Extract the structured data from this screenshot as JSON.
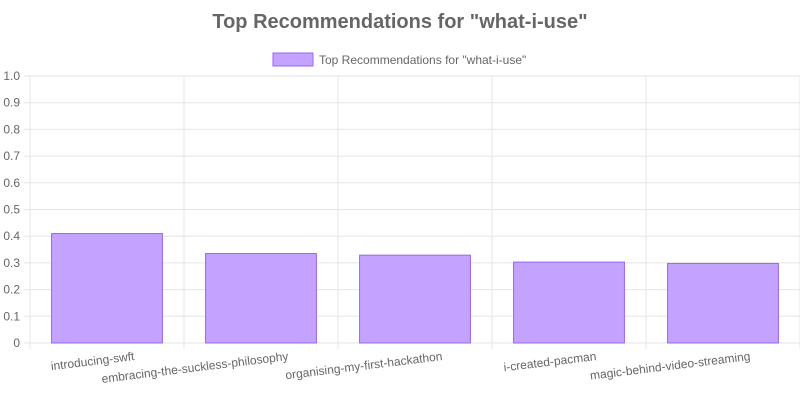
{
  "chart_data": {
    "type": "bar",
    "title": "Top Recommendations for \"what-i-use\"",
    "categories": [
      "introducing-swft",
      "embracing-the-suckless-philosophy",
      "organising-my-first-hackathon",
      "i-created-pacman",
      "magic-behind-video-streaming"
    ],
    "series": [
      {
        "name": "Top Recommendations for \"what-i-use\"",
        "values": [
          0.41,
          0.335,
          0.329,
          0.303,
          0.298
        ]
      }
    ],
    "ylim": [
      0,
      1.0
    ],
    "yticks": [
      "0",
      "0.1",
      "0.2",
      "0.3",
      "0.4",
      "0.5",
      "0.6",
      "0.7",
      "0.8",
      "0.9",
      "1.0"
    ],
    "grid": true,
    "legend_position": "top",
    "colors": {
      "bar_fill": "#c4a3ff",
      "bar_border": "#9966ee",
      "title": "#666666",
      "text": "#666666",
      "grid": "#e5e5e5"
    }
  }
}
